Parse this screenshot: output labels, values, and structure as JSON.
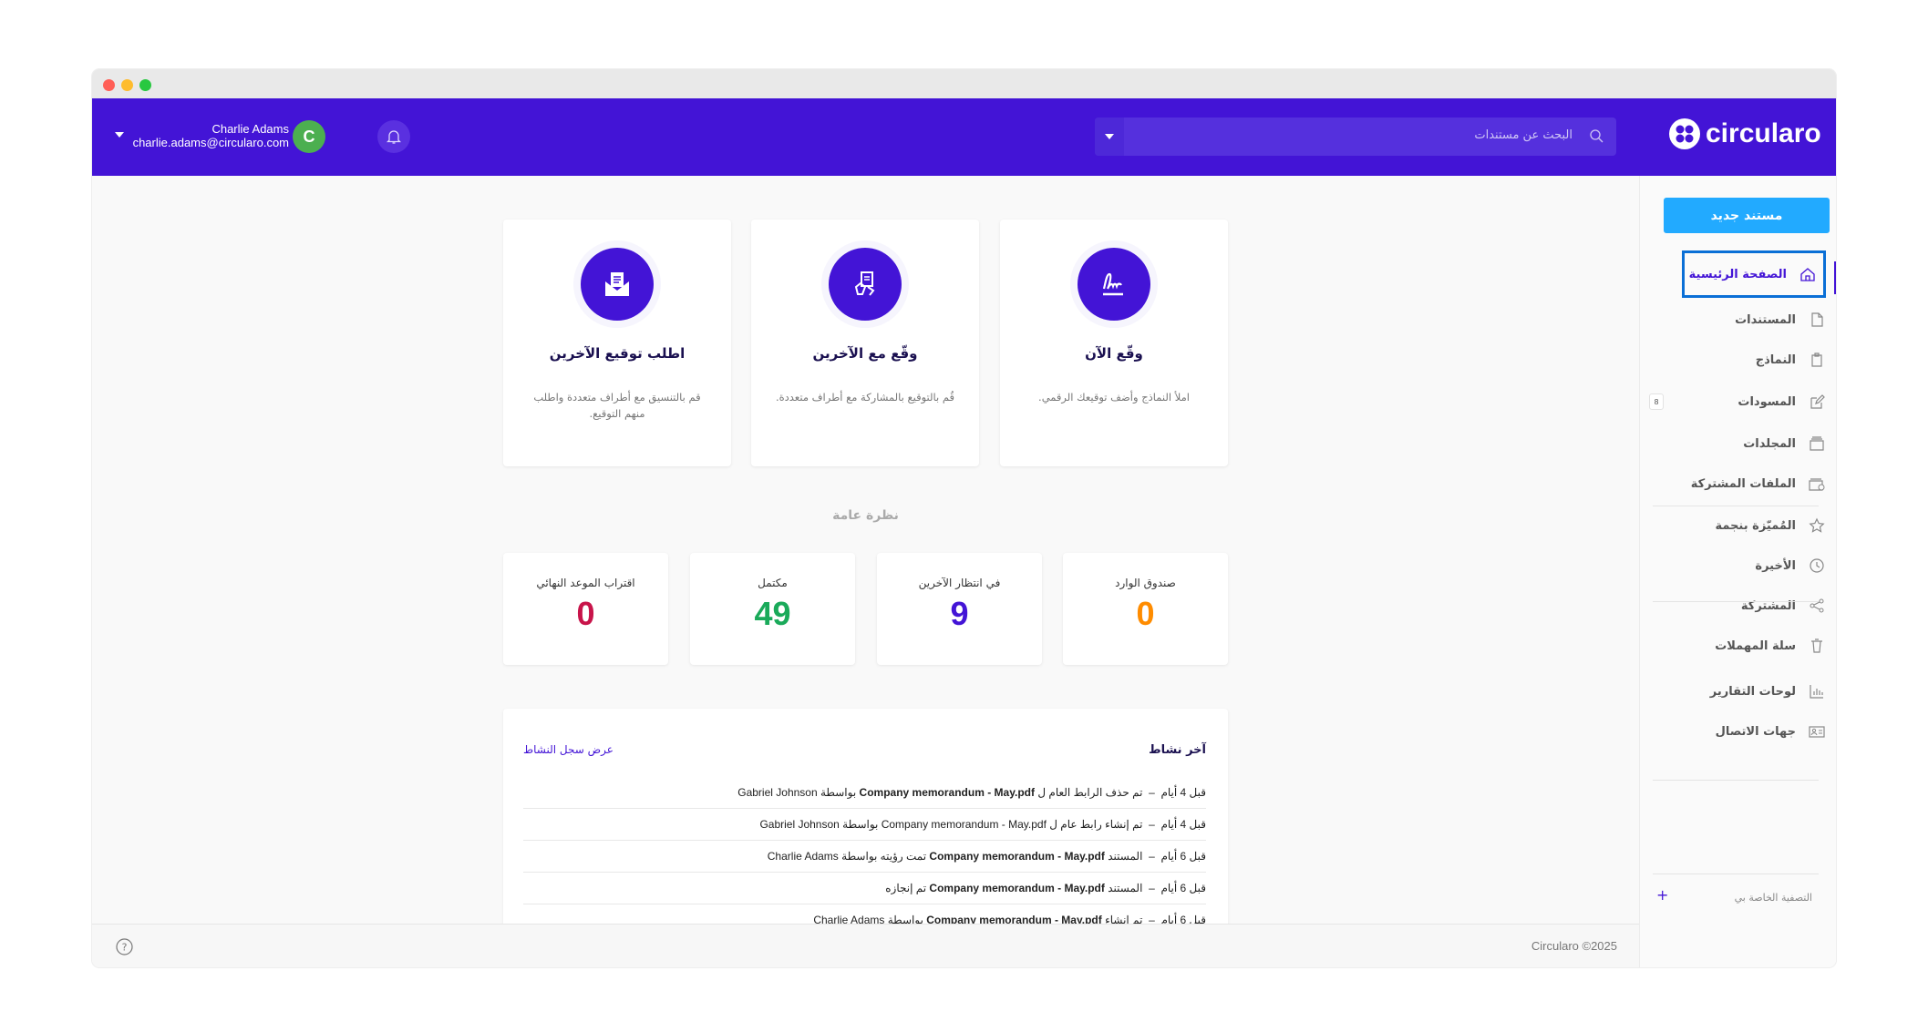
{
  "window": {
    "dots": [
      "#ff5f57",
      "#febc2e",
      "#28c840"
    ]
  },
  "header": {
    "user_name": "Charlie Adams",
    "user_email": "charlie.adams@circularo.com",
    "avatar_initial": "C",
    "search_placeholder": "البحث عن مستندات",
    "logo_text": "circularo",
    "accent": "#4314d6"
  },
  "sidebar": {
    "new_document": "مستند جديد",
    "items": [
      {
        "label": "الصفحة الرئيسية",
        "icon": "home-icon",
        "active": true
      },
      {
        "label": "المستندات",
        "icon": "document-icon"
      },
      {
        "label": "النماذج",
        "icon": "template-icon"
      },
      {
        "label": "المسودات",
        "icon": "edit-icon",
        "badge": "8"
      },
      {
        "label": "المجلدات",
        "icon": "folder-icon"
      },
      {
        "label": "الملفات المشتركة",
        "icon": "shared-folder-icon"
      },
      {
        "label": "المُميّزة بنجمة",
        "icon": "star-icon"
      },
      {
        "label": "الأخيرة",
        "icon": "clock-icon"
      },
      {
        "label": "المشتركة",
        "icon": "share-icon"
      },
      {
        "label": "سلة المهملات",
        "icon": "trash-icon"
      },
      {
        "label": "لوحات التقارير",
        "icon": "chart-icon"
      },
      {
        "label": "جهات الاتصال",
        "icon": "contact-card-icon"
      }
    ],
    "personal_filter": "التصفية الخاصة بي"
  },
  "actions": [
    {
      "title": "اطلب توقيع الآخرين",
      "desc": "قم بالتنسيق مع أطراف متعددة واطلب منهم التوقيع."
    },
    {
      "title": "وقّع مع الآخرين",
      "desc": "قُم بالتوقيع بالمشاركة مع أطراف متعددة."
    },
    {
      "title": "وقّع الآن",
      "desc": "املأ النماذج وأضف توقيعك الرقمي."
    }
  ],
  "overview": {
    "title": "نظرة عامة",
    "stats": [
      {
        "label": "اقتراب الموعد النهائي",
        "value": "0",
        "color": "#c8144a"
      },
      {
        "label": "مكتمل",
        "value": "49",
        "color": "#1aaa5a"
      },
      {
        "label": "في انتظار الآخرين",
        "value": "9",
        "color": "#4314d6"
      },
      {
        "label": "صندوق الوارد",
        "value": "0",
        "color": "#ff8c00"
      }
    ]
  },
  "activity": {
    "title": "آخر نشاط",
    "view_log": "عرض سجل النشاط",
    "rows": [
      {
        "time": "قبل 4 أيام",
        "pre": "تم حذف الرابط العام ل",
        "doc": "Company memorandum - May.pdf",
        "post": "بواسطة Gabriel Johnson",
        "bold": true
      },
      {
        "time": "قبل 4 أيام",
        "pre": "تم إنشاء رابط عام ل",
        "doc": "Company memorandum - May.pdf",
        "post": "بواسطة Gabriel Johnson",
        "bold": false
      },
      {
        "time": "قبل 6 أيام",
        "pre": "المستند",
        "doc": "Company memorandum - May.pdf",
        "post": "تمت رؤيته بواسطة Charlie Adams",
        "bold": true
      },
      {
        "time": "قبل 6 أيام",
        "pre": "المستند",
        "doc": "Company memorandum - May.pdf",
        "post": "تم إنجازه",
        "bold": true
      },
      {
        "time": "قبل 6 أيام",
        "pre": "تم إنشاء",
        "doc": "Company memorandum - May.pdf",
        "post": "بواسطة Charlie Adams",
        "bold": true
      }
    ]
  },
  "footer": {
    "copyright": "Circularo ©2025"
  }
}
